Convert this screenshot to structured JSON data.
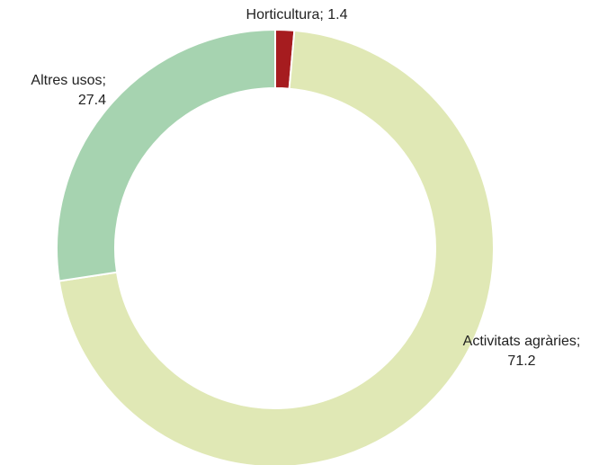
{
  "chart_data": {
    "type": "donut",
    "categories": [
      "Horticultura",
      "Activitats agràries",
      "Altres usos"
    ],
    "values": [
      1.4,
      71.2,
      27.4
    ],
    "value_labels": [
      "Horticultura; 1.4",
      "Activitats agràries; 71.2",
      "Altres usos; 27.4"
    ],
    "colors": [
      "#a61c1f",
      "#e0e8b5",
      "#a6d3b0"
    ]
  }
}
